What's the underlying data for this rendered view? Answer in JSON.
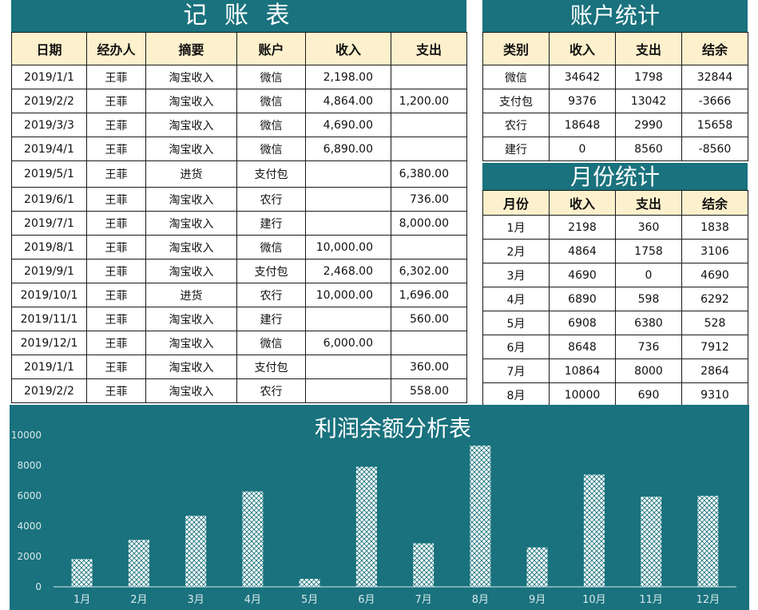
{
  "ledger": {
    "title": "记 账 表",
    "headers": [
      "日期",
      "经办人",
      "摘要",
      "账户",
      "收入",
      "支出"
    ],
    "rows": [
      [
        "2019/1/1",
        "王菲",
        "淘宝收入",
        "微信",
        "2,198.00",
        ""
      ],
      [
        "2019/2/2",
        "王菲",
        "淘宝收入",
        "微信",
        "4,864.00",
        "1,200.00"
      ],
      [
        "2019/3/3",
        "王菲",
        "淘宝收入",
        "微信",
        "4,690.00",
        ""
      ],
      [
        "2019/4/1",
        "王菲",
        "淘宝收入",
        "微信",
        "6,890.00",
        ""
      ],
      [
        "2019/5/1",
        "王菲",
        "进货",
        "支付包",
        "",
        "6,380.00"
      ],
      [
        "2019/6/1",
        "王菲",
        "淘宝收入",
        "农行",
        "",
        "736.00"
      ],
      [
        "2019/7/1",
        "王菲",
        "淘宝收入",
        "建行",
        "",
        "8,000.00"
      ],
      [
        "2019/8/1",
        "王菲",
        "淘宝收入",
        "微信",
        "10,000.00",
        ""
      ],
      [
        "2019/9/1",
        "王菲",
        "淘宝收入",
        "支付包",
        "2,468.00",
        "6,302.00"
      ],
      [
        "2019/10/1",
        "王菲",
        "进货",
        "农行",
        "10,000.00",
        "1,696.00"
      ],
      [
        "2019/11/1",
        "王菲",
        "淘宝收入",
        "建行",
        "",
        "560.00"
      ],
      [
        "2019/12/1",
        "王菲",
        "淘宝收入",
        "微信",
        "6,000.00",
        ""
      ],
      [
        "2019/1/1",
        "王菲",
        "淘宝收入",
        "支付包",
        "",
        "360.00"
      ],
      [
        "2019/2/2",
        "王菲",
        "淘宝收入",
        "农行",
        "",
        "558.00"
      ]
    ]
  },
  "accounts": {
    "title": "账户统计",
    "headers": [
      "类别",
      "收入",
      "支出",
      "结余"
    ],
    "rows": [
      [
        "微信",
        "34642",
        "1798",
        "32844"
      ],
      [
        "支付包",
        "9376",
        "13042",
        "-3666"
      ],
      [
        "农行",
        "18648",
        "2990",
        "15658"
      ],
      [
        "建行",
        "0",
        "8560",
        "-8560"
      ]
    ]
  },
  "monthly": {
    "title": "月份统计",
    "headers": [
      "月份",
      "收入",
      "支出",
      "结余"
    ],
    "rows": [
      [
        "1月",
        "2198",
        "360",
        "1838"
      ],
      [
        "2月",
        "4864",
        "1758",
        "3106"
      ],
      [
        "3月",
        "4690",
        "0",
        "4690"
      ],
      [
        "4月",
        "6890",
        "598",
        "6292"
      ],
      [
        "5月",
        "6908",
        "6380",
        "528"
      ],
      [
        "6月",
        "8648",
        "736",
        "7912"
      ],
      [
        "7月",
        "10864",
        "8000",
        "2864"
      ],
      [
        "8月",
        "10000",
        "690",
        "9310"
      ]
    ]
  },
  "chart_data": {
    "type": "bar",
    "title": "利润余额分析表",
    "categories": [
      "1月",
      "2月",
      "3月",
      "4月",
      "5月",
      "6月",
      "7月",
      "8月",
      "9月",
      "10月",
      "11月",
      "12月"
    ],
    "values": [
      1838,
      3106,
      4690,
      6292,
      528,
      7912,
      2864,
      9310,
      2600,
      7400,
      5950,
      6000
    ],
    "ylim": [
      0,
      10000
    ],
    "yticks": [
      0,
      2000,
      4000,
      6000,
      8000,
      10000
    ],
    "grid": false,
    "colors": {
      "background": "#19727d",
      "bar": "#ffffff",
      "axis": "#d9e8ea"
    }
  }
}
